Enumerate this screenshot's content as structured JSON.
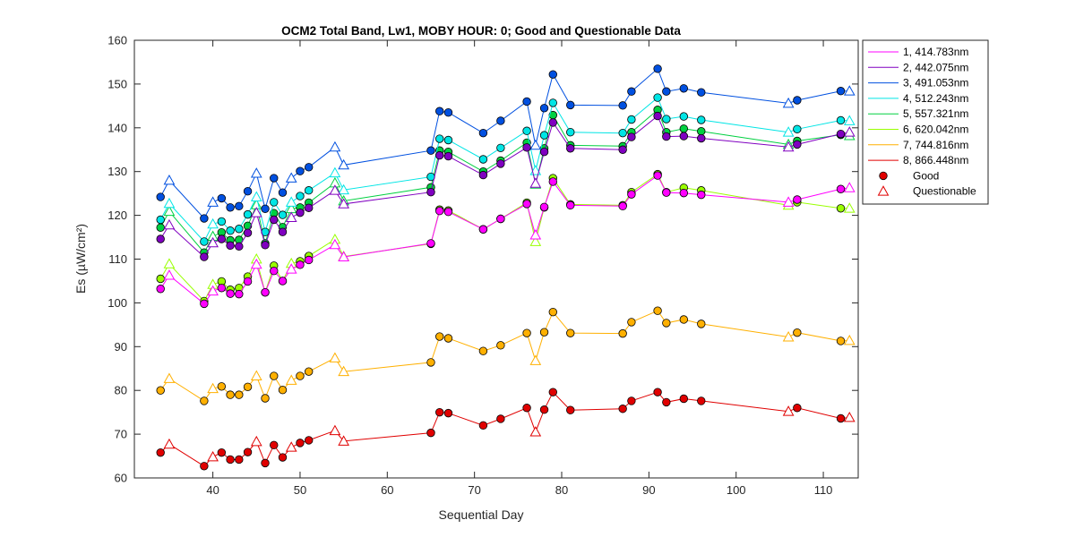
{
  "chart_data": {
    "type": "line",
    "title": "OCM2 Total Band,  Lw1, MOBY HOUR: 0;  Good and Questionable Data",
    "xlabel": "Sequential Day",
    "ylabel": "Es (µW/cm²)",
    "xlim": [
      31,
      114
    ],
    "ylim": [
      60,
      160
    ],
    "xticks": [
      40,
      50,
      60,
      70,
      80,
      90,
      100,
      110
    ],
    "yticks": [
      60,
      70,
      80,
      90,
      100,
      110,
      120,
      130,
      140,
      150,
      160
    ],
    "grid": false,
    "legend_position": "outside-top-right",
    "x": [
      34,
      35,
      39,
      40,
      41,
      42,
      43,
      44,
      45,
      46,
      47,
      48,
      49,
      50,
      51,
      54,
      55,
      65,
      66,
      67,
      71,
      73,
      76,
      77,
      78,
      79,
      81,
      87,
      88,
      91,
      92,
      94,
      96,
      106,
      107,
      112,
      113
    ],
    "quality": [
      "G",
      "Q",
      "G",
      "Q",
      "G",
      "G",
      "G",
      "G",
      "Q",
      "G",
      "G",
      "G",
      "Q",
      "G",
      "G",
      "Q",
      "Q",
      "G",
      "G",
      "G",
      "G",
      "G",
      "G",
      "Q",
      "G",
      "G",
      "G",
      "G",
      "G",
      "G",
      "G",
      "G",
      "G",
      "Q",
      "G",
      "G",
      "Q"
    ],
    "series": [
      {
        "name": "1, 414.783nm",
        "color": "#ff00ff",
        "values": [
          103.2,
          106.3,
          99.8,
          102.7,
          103.4,
          102.1,
          102.0,
          104.9,
          108.8,
          102.4,
          107.3,
          105.0,
          107.7,
          108.7,
          109.8,
          113.3,
          110.5,
          113.6,
          121.0,
          120.8,
          116.8,
          119.2,
          122.6,
          115.5,
          121.9,
          127.7,
          122.3,
          122.1,
          124.8,
          129.1,
          125.2,
          125.1,
          124.7,
          123.0,
          123.6,
          126.0,
          126.3
        ]
      },
      {
        "name": "2, 442.075nm",
        "color": "#8000c0",
        "values": [
          114.6,
          117.8,
          110.5,
          113.7,
          114.6,
          113.1,
          112.9,
          116.0,
          120.6,
          113.2,
          119.0,
          116.2,
          119.5,
          120.6,
          121.7,
          125.7,
          122.6,
          125.3,
          133.7,
          133.5,
          129.2,
          131.8,
          135.5,
          127.3,
          134.5,
          141.2,
          135.3,
          135.0,
          137.9,
          142.7,
          138.0,
          138.1,
          137.6,
          135.6,
          136.2,
          138.6,
          139.0
        ]
      },
      {
        "name": "3, 491.053nm",
        "color": "#0050e0",
        "values": [
          124.2,
          128.0,
          119.3,
          123.0,
          123.9,
          121.8,
          122.1,
          125.5,
          129.6,
          121.5,
          128.5,
          125.2,
          128.5,
          130.1,
          131.0,
          135.6,
          131.5,
          134.8,
          143.8,
          143.5,
          138.8,
          141.6,
          146.0,
          136.0,
          144.5,
          152.2,
          145.2,
          145.1,
          148.3,
          153.5,
          148.3,
          149.0,
          148.1,
          145.6,
          146.3,
          148.4,
          148.4
        ]
      },
      {
        "name": "4, 512.243nm",
        "color": "#00e5e5",
        "values": [
          119.0,
          122.7,
          114.0,
          118.0,
          118.6,
          116.5,
          116.9,
          120.2,
          124.2,
          116.2,
          123.0,
          120.1,
          123.0,
          124.4,
          125.7,
          129.7,
          125.8,
          128.8,
          137.5,
          137.2,
          132.8,
          135.4,
          139.3,
          130.2,
          138.3,
          145.7,
          139.0,
          138.8,
          141.9,
          146.9,
          142.0,
          142.6,
          141.8,
          139.0,
          139.7,
          141.7,
          141.6
        ]
      },
      {
        "name": "5, 557.321nm",
        "color": "#00d040",
        "values": [
          117.2,
          120.9,
          111.5,
          115.2,
          116.1,
          114.3,
          114.4,
          117.6,
          122.4,
          113.6,
          120.5,
          117.3,
          121.5,
          121.8,
          122.9,
          127.4,
          123.3,
          126.4,
          134.8,
          134.5,
          130.0,
          132.5,
          136.6,
          127.1,
          135.3,
          142.9,
          136.0,
          135.8,
          139.0,
          144.1,
          139.0,
          139.8,
          139.2,
          136.2,
          137.0,
          138.4,
          138.2
        ]
      },
      {
        "name": "6, 620.042nm",
        "color": "#99ff00",
        "values": [
          105.5,
          108.9,
          100.4,
          104.2,
          104.9,
          103.0,
          103.4,
          106.0,
          110.0,
          102.4,
          108.5,
          105.0,
          109.0,
          109.5,
          110.7,
          114.5,
          110.6,
          113.5,
          121.3,
          121.1,
          116.8,
          119.2,
          122.9,
          114.0,
          121.8,
          128.5,
          122.5,
          122.3,
          125.3,
          129.4,
          125.3,
          126.3,
          125.7,
          122.3,
          123.0,
          121.6,
          121.6
        ]
      },
      {
        "name": "7, 744.816nm",
        "color": "#ffb000",
        "values": [
          80.0,
          82.7,
          77.6,
          80.4,
          80.9,
          79.0,
          79.0,
          80.8,
          83.3,
          78.2,
          83.3,
          80.1,
          82.3,
          83.3,
          84.3,
          87.4,
          84.3,
          86.4,
          92.3,
          91.9,
          89.0,
          90.3,
          93.1,
          86.8,
          93.3,
          97.9,
          93.1,
          93.0,
          95.6,
          98.2,
          95.4,
          96.2,
          95.2,
          92.2,
          93.2,
          91.3,
          91.4
        ]
      },
      {
        "name": "8, 866.448nm",
        "color": "#e00000",
        "values": [
          65.8,
          67.7,
          62.7,
          64.8,
          65.8,
          64.2,
          64.2,
          65.9,
          68.3,
          63.4,
          67.5,
          64.7,
          67.0,
          68.0,
          68.6,
          70.8,
          68.4,
          70.3,
          75.0,
          74.8,
          72.0,
          73.5,
          76.0,
          70.5,
          75.6,
          79.6,
          75.5,
          75.8,
          77.6,
          79.6,
          77.3,
          78.1,
          77.6,
          75.2,
          76.0,
          73.6,
          73.8
        ]
      }
    ],
    "legend_markers": [
      {
        "label": "Good",
        "marker": "circle",
        "fill": "#e00000"
      },
      {
        "label": "Questionable",
        "marker": "triangle",
        "stroke": "#e00000"
      }
    ]
  }
}
